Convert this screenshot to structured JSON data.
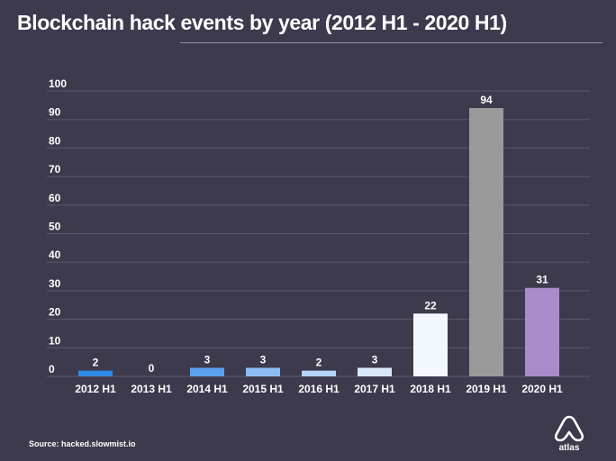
{
  "chart_data": {
    "type": "bar",
    "title": "Blockchain hack events by year (2012 H1 - 2020 H1)",
    "categories": [
      "2012 H1",
      "2013 H1",
      "2014 H1",
      "2015 H1",
      "2016 H1",
      "2017 H1",
      "2018 H1",
      "2019 H1",
      "2020 H1"
    ],
    "values": [
      2,
      0,
      3,
      3,
      2,
      3,
      22,
      94,
      31
    ],
    "data_labels": [
      "2",
      "0",
      "3",
      "3",
      "2",
      "3",
      "22",
      "94",
      "31"
    ],
    "colors": [
      "#2f8ae6",
      "#2f8ae6",
      "#5aa2ee",
      "#8cbdf3",
      "#b5d3f8",
      "#d9e8fb",
      "#f3f7fe",
      "#9a9a9a",
      "#a98ccc"
    ],
    "yticks": [
      "0",
      "10",
      "20",
      "30",
      "40",
      "50",
      "60",
      "70",
      "80",
      "90",
      "100"
    ],
    "ylim": [
      0,
      100
    ],
    "grid": true,
    "xlabel": "",
    "ylabel": ""
  },
  "source": "Source: hacked.slowmist.io",
  "logo": {
    "icon": "atlas-logo-icon",
    "text": "atlas"
  },
  "colors": {
    "background": "#3c3a4c",
    "gridline": "#5a586b",
    "text": "#ffffff"
  }
}
